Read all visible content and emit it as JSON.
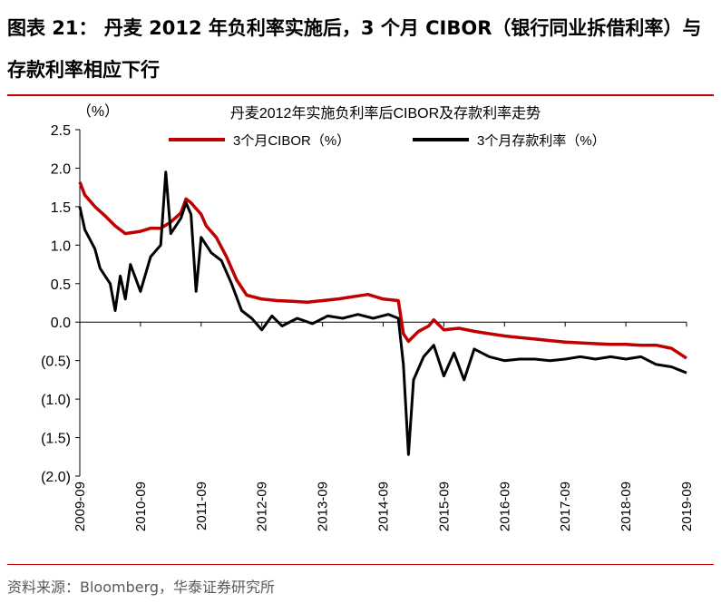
{
  "figure": {
    "title": "图表 21：  丹麦 2012 年负利率实施后，3 个月 CIBOR（银行同业拆借利率）与存款利率相应下行",
    "source": "资料来源：Bloomberg，华泰证券研究所"
  },
  "chart_data": {
    "type": "line",
    "title": "丹麦2012年实施负利率后CIBOR及存款利率走势",
    "ylabel": "（%）",
    "ylim": [
      -2.0,
      2.5
    ],
    "yticks": [
      2.5,
      2.0,
      1.5,
      1.0,
      0.5,
      0.0,
      -0.5,
      -1.0,
      -1.5,
      -2.0
    ],
    "ytick_labels": [
      "2.5",
      "2.0",
      "1.5",
      "1.0",
      "0.5",
      "0.0",
      "(0.5)",
      "(1.0)",
      "(1.5)",
      "(2.0)"
    ],
    "xlim": [
      "2009-09",
      "2019-09"
    ],
    "x_tick_labels": [
      "2009-09",
      "2010-09",
      "2011-09",
      "2012-09",
      "2013-09",
      "2014-09",
      "2015-09",
      "2016-09",
      "2017-09",
      "2018-09",
      "2019-09"
    ],
    "grid": false,
    "legend_placement": "top",
    "series": [
      {
        "name": "3个月CIBOR（%）",
        "color": "#c00000",
        "points": [
          [
            "2009-09",
            1.82
          ],
          [
            "2009-10",
            1.65
          ],
          [
            "2009-12",
            1.5
          ],
          [
            "2010-02",
            1.38
          ],
          [
            "2010-04",
            1.25
          ],
          [
            "2010-06",
            1.15
          ],
          [
            "2010-09",
            1.18
          ],
          [
            "2010-11",
            1.22
          ],
          [
            "2011-01",
            1.22
          ],
          [
            "2011-03",
            1.3
          ],
          [
            "2011-05",
            1.42
          ],
          [
            "2011-06",
            1.6
          ],
          [
            "2011-07",
            1.55
          ],
          [
            "2011-09",
            1.4
          ],
          [
            "2011-10",
            1.25
          ],
          [
            "2011-12",
            1.1
          ],
          [
            "2012-02",
            0.85
          ],
          [
            "2012-04",
            0.55
          ],
          [
            "2012-06",
            0.35
          ],
          [
            "2012-09",
            0.3
          ],
          [
            "2012-12",
            0.28
          ],
          [
            "2013-03",
            0.27
          ],
          [
            "2013-06",
            0.26
          ],
          [
            "2013-09",
            0.28
          ],
          [
            "2013-12",
            0.3
          ],
          [
            "2014-03",
            0.33
          ],
          [
            "2014-06",
            0.36
          ],
          [
            "2014-09",
            0.3
          ],
          [
            "2014-12",
            0.28
          ],
          [
            "2015-01",
            -0.15
          ],
          [
            "2015-02",
            -0.25
          ],
          [
            "2015-04",
            -0.12
          ],
          [
            "2015-06",
            -0.05
          ],
          [
            "2015-07",
            0.03
          ],
          [
            "2015-09",
            -0.1
          ],
          [
            "2015-12",
            -0.08
          ],
          [
            "2016-03",
            -0.12
          ],
          [
            "2016-06",
            -0.15
          ],
          [
            "2016-09",
            -0.18
          ],
          [
            "2016-12",
            -0.2
          ],
          [
            "2017-03",
            -0.22
          ],
          [
            "2017-06",
            -0.24
          ],
          [
            "2017-09",
            -0.26
          ],
          [
            "2017-12",
            -0.27
          ],
          [
            "2018-03",
            -0.28
          ],
          [
            "2018-06",
            -0.29
          ],
          [
            "2018-09",
            -0.29
          ],
          [
            "2018-12",
            -0.3
          ],
          [
            "2019-03",
            -0.3
          ],
          [
            "2019-06",
            -0.34
          ],
          [
            "2019-09",
            -0.47
          ]
        ]
      },
      {
        "name": "3个月存款利率（%）",
        "color": "#000000",
        "points": [
          [
            "2009-09",
            1.5
          ],
          [
            "2009-10",
            1.2
          ],
          [
            "2009-12",
            0.95
          ],
          [
            "2010-01",
            0.7
          ],
          [
            "2010-03",
            0.5
          ],
          [
            "2010-04",
            0.15
          ],
          [
            "2010-05",
            0.6
          ],
          [
            "2010-06",
            0.3
          ],
          [
            "2010-07",
            0.75
          ],
          [
            "2010-09",
            0.4
          ],
          [
            "2010-11",
            0.85
          ],
          [
            "2011-01",
            1.0
          ],
          [
            "2011-02",
            1.95
          ],
          [
            "2011-03",
            1.15
          ],
          [
            "2011-05",
            1.35
          ],
          [
            "2011-06",
            1.55
          ],
          [
            "2011-07",
            1.4
          ],
          [
            "2011-08",
            0.4
          ],
          [
            "2011-09",
            1.1
          ],
          [
            "2011-11",
            0.9
          ],
          [
            "2012-01",
            0.8
          ],
          [
            "2012-03",
            0.5
          ],
          [
            "2012-05",
            0.15
          ],
          [
            "2012-07",
            0.05
          ],
          [
            "2012-09",
            -0.1
          ],
          [
            "2012-11",
            0.08
          ],
          [
            "2013-01",
            -0.05
          ],
          [
            "2013-04",
            0.05
          ],
          [
            "2013-07",
            -0.02
          ],
          [
            "2013-10",
            0.08
          ],
          [
            "2014-01",
            0.05
          ],
          [
            "2014-04",
            0.1
          ],
          [
            "2014-07",
            0.05
          ],
          [
            "2014-10",
            0.1
          ],
          [
            "2014-12",
            0.05
          ],
          [
            "2015-01",
            -0.55
          ],
          [
            "2015-02",
            -1.72
          ],
          [
            "2015-03",
            -0.75
          ],
          [
            "2015-05",
            -0.45
          ],
          [
            "2015-07",
            -0.3
          ],
          [
            "2015-09",
            -0.7
          ],
          [
            "2015-11",
            -0.4
          ],
          [
            "2016-01",
            -0.75
          ],
          [
            "2016-03",
            -0.35
          ],
          [
            "2016-06",
            -0.45
          ],
          [
            "2016-09",
            -0.5
          ],
          [
            "2016-12",
            -0.48
          ],
          [
            "2017-03",
            -0.48
          ],
          [
            "2017-06",
            -0.5
          ],
          [
            "2017-09",
            -0.48
          ],
          [
            "2017-12",
            -0.45
          ],
          [
            "2018-03",
            -0.48
          ],
          [
            "2018-06",
            -0.45
          ],
          [
            "2018-09",
            -0.48
          ],
          [
            "2018-12",
            -0.45
          ],
          [
            "2019-03",
            -0.55
          ],
          [
            "2019-06",
            -0.58
          ],
          [
            "2019-09",
            -0.66
          ]
        ]
      }
    ]
  }
}
